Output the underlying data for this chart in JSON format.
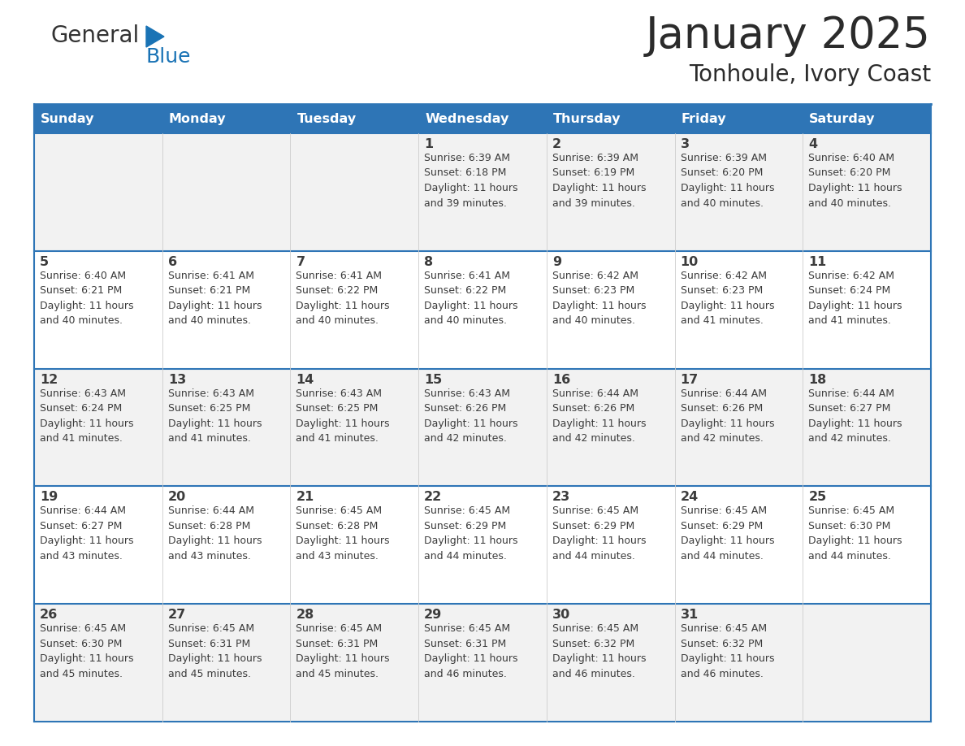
{
  "title": "January 2025",
  "subtitle": "Tonhoule, Ivory Coast",
  "header_bg": "#2E75B6",
  "header_text_color": "#FFFFFF",
  "cell_bg_even": "#F2F2F2",
  "cell_bg_odd": "#FFFFFF",
  "border_color": "#2E75B6",
  "text_color": "#3C3C3C",
  "days_of_week": [
    "Sunday",
    "Monday",
    "Tuesday",
    "Wednesday",
    "Thursday",
    "Friday",
    "Saturday"
  ],
  "calendar": [
    [
      {
        "day": "",
        "info": ""
      },
      {
        "day": "",
        "info": ""
      },
      {
        "day": "",
        "info": ""
      },
      {
        "day": "1",
        "info": "Sunrise: 6:39 AM\nSunset: 6:18 PM\nDaylight: 11 hours\nand 39 minutes."
      },
      {
        "day": "2",
        "info": "Sunrise: 6:39 AM\nSunset: 6:19 PM\nDaylight: 11 hours\nand 39 minutes."
      },
      {
        "day": "3",
        "info": "Sunrise: 6:39 AM\nSunset: 6:20 PM\nDaylight: 11 hours\nand 40 minutes."
      },
      {
        "day": "4",
        "info": "Sunrise: 6:40 AM\nSunset: 6:20 PM\nDaylight: 11 hours\nand 40 minutes."
      }
    ],
    [
      {
        "day": "5",
        "info": "Sunrise: 6:40 AM\nSunset: 6:21 PM\nDaylight: 11 hours\nand 40 minutes."
      },
      {
        "day": "6",
        "info": "Sunrise: 6:41 AM\nSunset: 6:21 PM\nDaylight: 11 hours\nand 40 minutes."
      },
      {
        "day": "7",
        "info": "Sunrise: 6:41 AM\nSunset: 6:22 PM\nDaylight: 11 hours\nand 40 minutes."
      },
      {
        "day": "8",
        "info": "Sunrise: 6:41 AM\nSunset: 6:22 PM\nDaylight: 11 hours\nand 40 minutes."
      },
      {
        "day": "9",
        "info": "Sunrise: 6:42 AM\nSunset: 6:23 PM\nDaylight: 11 hours\nand 40 minutes."
      },
      {
        "day": "10",
        "info": "Sunrise: 6:42 AM\nSunset: 6:23 PM\nDaylight: 11 hours\nand 41 minutes."
      },
      {
        "day": "11",
        "info": "Sunrise: 6:42 AM\nSunset: 6:24 PM\nDaylight: 11 hours\nand 41 minutes."
      }
    ],
    [
      {
        "day": "12",
        "info": "Sunrise: 6:43 AM\nSunset: 6:24 PM\nDaylight: 11 hours\nand 41 minutes."
      },
      {
        "day": "13",
        "info": "Sunrise: 6:43 AM\nSunset: 6:25 PM\nDaylight: 11 hours\nand 41 minutes."
      },
      {
        "day": "14",
        "info": "Sunrise: 6:43 AM\nSunset: 6:25 PM\nDaylight: 11 hours\nand 41 minutes."
      },
      {
        "day": "15",
        "info": "Sunrise: 6:43 AM\nSunset: 6:26 PM\nDaylight: 11 hours\nand 42 minutes."
      },
      {
        "day": "16",
        "info": "Sunrise: 6:44 AM\nSunset: 6:26 PM\nDaylight: 11 hours\nand 42 minutes."
      },
      {
        "day": "17",
        "info": "Sunrise: 6:44 AM\nSunset: 6:26 PM\nDaylight: 11 hours\nand 42 minutes."
      },
      {
        "day": "18",
        "info": "Sunrise: 6:44 AM\nSunset: 6:27 PM\nDaylight: 11 hours\nand 42 minutes."
      }
    ],
    [
      {
        "day": "19",
        "info": "Sunrise: 6:44 AM\nSunset: 6:27 PM\nDaylight: 11 hours\nand 43 minutes."
      },
      {
        "day": "20",
        "info": "Sunrise: 6:44 AM\nSunset: 6:28 PM\nDaylight: 11 hours\nand 43 minutes."
      },
      {
        "day": "21",
        "info": "Sunrise: 6:45 AM\nSunset: 6:28 PM\nDaylight: 11 hours\nand 43 minutes."
      },
      {
        "day": "22",
        "info": "Sunrise: 6:45 AM\nSunset: 6:29 PM\nDaylight: 11 hours\nand 44 minutes."
      },
      {
        "day": "23",
        "info": "Sunrise: 6:45 AM\nSunset: 6:29 PM\nDaylight: 11 hours\nand 44 minutes."
      },
      {
        "day": "24",
        "info": "Sunrise: 6:45 AM\nSunset: 6:29 PM\nDaylight: 11 hours\nand 44 minutes."
      },
      {
        "day": "25",
        "info": "Sunrise: 6:45 AM\nSunset: 6:30 PM\nDaylight: 11 hours\nand 44 minutes."
      }
    ],
    [
      {
        "day": "26",
        "info": "Sunrise: 6:45 AM\nSunset: 6:30 PM\nDaylight: 11 hours\nand 45 minutes."
      },
      {
        "day": "27",
        "info": "Sunrise: 6:45 AM\nSunset: 6:31 PM\nDaylight: 11 hours\nand 45 minutes."
      },
      {
        "day": "28",
        "info": "Sunrise: 6:45 AM\nSunset: 6:31 PM\nDaylight: 11 hours\nand 45 minutes."
      },
      {
        "day": "29",
        "info": "Sunrise: 6:45 AM\nSunset: 6:31 PM\nDaylight: 11 hours\nand 46 minutes."
      },
      {
        "day": "30",
        "info": "Sunrise: 6:45 AM\nSunset: 6:32 PM\nDaylight: 11 hours\nand 46 minutes."
      },
      {
        "day": "31",
        "info": "Sunrise: 6:45 AM\nSunset: 6:32 PM\nDaylight: 11 hours\nand 46 minutes."
      },
      {
        "day": "",
        "info": ""
      }
    ]
  ],
  "logo_color_general": "#333333",
  "logo_color_blue": "#1A73B5",
  "logo_triangle_color": "#1A73B5",
  "fig_width": 11.88,
  "fig_height": 9.18,
  "dpi": 100
}
